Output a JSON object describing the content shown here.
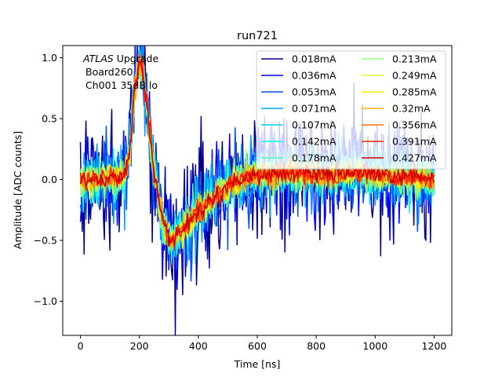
{
  "chart_data": {
    "type": "line",
    "title": "run721",
    "xlabel": "Time [ns]",
    "ylabel": "Amplitude [ADC counts]",
    "xlim": [
      -60,
      1260
    ],
    "ylim": [
      -1.28,
      1.1
    ],
    "xticks": [
      0,
      200,
      400,
      600,
      800,
      1000,
      1200
    ],
    "yticks": [
      -1.0,
      -0.5,
      0.0,
      0.5,
      1.0
    ],
    "xtick_labels": [
      "0",
      "200",
      "400",
      "600",
      "800",
      "1000",
      "1200"
    ],
    "ytick_labels": [
      "−1.0",
      "−0.5",
      "0.0",
      "0.5",
      "1.0"
    ],
    "grid": false,
    "legend_position": "top-right",
    "legend_columns": 2,
    "annotation": {
      "line1_italic": "ATLAS",
      "line1_rest": " Upgrade",
      "line2": "Board260",
      "line3": "Ch001 35dB lo"
    },
    "pulse_shape": {
      "x": [
        0,
        100,
        150,
        170,
        185,
        200,
        210,
        225,
        250,
        280,
        300,
        320,
        360,
        420,
        500,
        580,
        640,
        720,
        800,
        850,
        880,
        920,
        1000,
        1100,
        1200
      ],
      "y": [
        0.0,
        0.0,
        0.02,
        0.3,
        0.75,
        0.97,
        0.92,
        0.62,
        0.05,
        -0.35,
        -0.49,
        -0.47,
        -0.37,
        -0.22,
        -0.05,
        0.03,
        0.05,
        0.05,
        0.04,
        0.03,
        0.05,
        0.06,
        0.04,
        0.02,
        0.0
      ]
    },
    "series": [
      {
        "name": "0.018mA",
        "color": "#00008f",
        "noise": 0.26
      },
      {
        "name": "0.036mA",
        "color": "#0000ff",
        "noise": 0.2
      },
      {
        "name": "0.053mA",
        "color": "#0050ff",
        "noise": 0.16
      },
      {
        "name": "0.071mA",
        "color": "#00a0ff",
        "noise": 0.13
      },
      {
        "name": "0.107mA",
        "color": "#00d0f0",
        "noise": 0.11
      },
      {
        "name": "0.142mA",
        "color": "#10ffef",
        "noise": 0.09
      },
      {
        "name": "0.178mA",
        "color": "#50ffaf",
        "noise": 0.08
      },
      {
        "name": "0.213mA",
        "color": "#90ff70",
        "noise": 0.07
      },
      {
        "name": "0.249mA",
        "color": "#cfff30",
        "noise": 0.06
      },
      {
        "name": "0.285mA",
        "color": "#ffef00",
        "noise": 0.055
      },
      {
        "name": "0.32mA",
        "color": "#ffb000",
        "noise": 0.05
      },
      {
        "name": "0.356mA",
        "color": "#ff7000",
        "noise": 0.045
      },
      {
        "name": "0.391mA",
        "color": "#ff2000",
        "noise": 0.04
      },
      {
        "name": "0.427mA",
        "color": "#cf0000",
        "noise": 0.035
      }
    ]
  }
}
